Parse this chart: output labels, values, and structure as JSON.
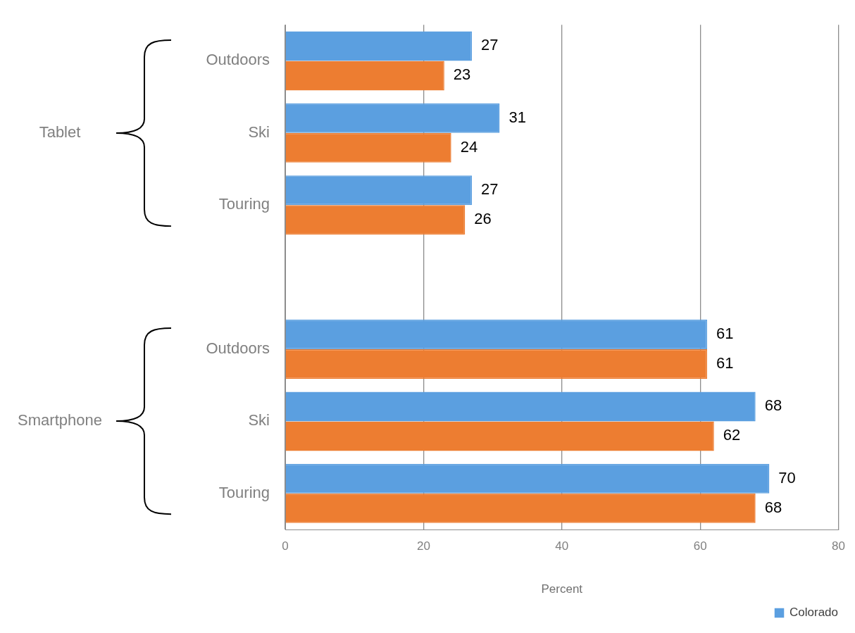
{
  "chart_data": {
    "type": "bar",
    "orientation": "horizontal",
    "xlabel": "Percent",
    "categories": [
      "Outdoors",
      "Ski",
      "Touring",
      null,
      "Outdoors",
      "Ski",
      "Touring"
    ],
    "series": [
      {
        "name": "Colorado",
        "color": "#5b9fe0",
        "values": [
          27,
          31,
          27,
          null,
          61,
          68,
          70
        ]
      },
      {
        "color": "#ed7d31",
        "values": [
          23,
          24,
          26,
          null,
          61,
          62,
          68
        ]
      }
    ],
    "xlim": [
      0,
      80
    ],
    "xticks": [
      0,
      20,
      40,
      60,
      80
    ],
    "grid": "x",
    "legend": "bottom right",
    "data_labels": true,
    "annotations": [
      "Tablet",
      "Smartphone"
    ]
  }
}
